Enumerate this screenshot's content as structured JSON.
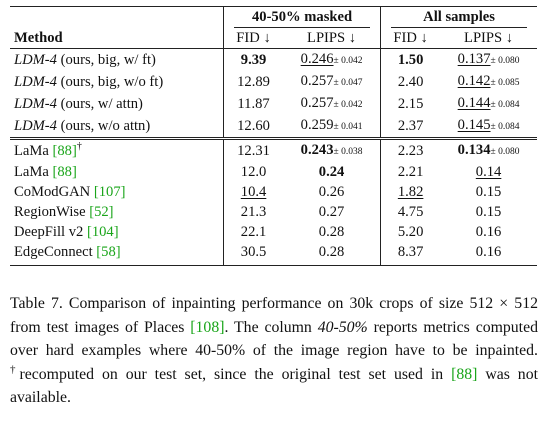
{
  "table": {
    "group_headers": [
      "40-50% masked",
      "All samples"
    ],
    "column_headers": [
      "Method",
      "FID ↓",
      "LPIPS ↓",
      "FID ↓",
      "LPIPS ↓"
    ],
    "ldm_rows": [
      {
        "name": "LDM-4",
        "desc": " (ours, big, w/ ft)",
        "fid1": "9.39",
        "lp1": "0.246",
        "lp1_std": "± 0.042",
        "fid2": "1.50",
        "lp2": "0.137",
        "lp2_std": "± 0.080"
      },
      {
        "name": "LDM-4",
        "desc": " (ours, big, w/o ft)",
        "fid1": "12.89",
        "lp1": "0.257",
        "lp1_std": "± 0.047",
        "fid2": "2.40",
        "lp2": "0.142",
        "lp2_std": "± 0.085"
      },
      {
        "name": "LDM-4",
        "desc": " (ours, w/ attn)",
        "fid1": "11.87",
        "lp1": "0.257",
        "lp1_std": "± 0.042",
        "fid2": "2.15",
        "lp2": "0.144",
        "lp2_std": "± 0.084"
      },
      {
        "name": "LDM-4",
        "desc": " (ours, w/o attn)",
        "fid1": "12.60",
        "lp1": "0.259",
        "lp1_std": "± 0.041",
        "fid2": "2.37",
        "lp2": "0.145",
        "lp2_std": "± 0.084"
      }
    ],
    "baseline_rows": [
      {
        "name": "LaMa ",
        "ref": "[88]",
        "dagger": "†",
        "fid1": "12.31",
        "lp1": "0.243",
        "lp1_std": "± 0.038",
        "fid2": "2.23",
        "lp2": "0.134",
        "lp2_std": "± 0.080"
      },
      {
        "name": "LaMa ",
        "ref": "[88]",
        "dagger": "",
        "fid1": "12.0",
        "lp1": "0.24",
        "lp1_std": "",
        "fid2": "2.21",
        "lp2": "0.14",
        "lp2_std": ""
      },
      {
        "name": "CoModGAN ",
        "ref": "[107]",
        "dagger": "",
        "fid1": "10.4",
        "lp1": "0.26",
        "lp1_std": "",
        "fid2": "1.82",
        "lp2": "0.15",
        "lp2_std": ""
      },
      {
        "name": "RegionWise ",
        "ref": "[52]",
        "dagger": "",
        "fid1": "21.3",
        "lp1": "0.27",
        "lp1_std": "",
        "fid2": "4.75",
        "lp2": "0.15",
        "lp2_std": ""
      },
      {
        "name": "DeepFill v2 ",
        "ref": "[104]",
        "dagger": "",
        "fid1": "22.1",
        "lp1": "0.28",
        "lp1_std": "",
        "fid2": "5.20",
        "lp2": "0.16",
        "lp2_std": ""
      },
      {
        "name": "EdgeConnect ",
        "ref": "[58]",
        "dagger": "",
        "fid1": "30.5",
        "lp1": "0.28",
        "lp1_std": "",
        "fid2": "8.37",
        "lp2": "0.16",
        "lp2_std": ""
      }
    ]
  },
  "caption": {
    "p1": "Table 7.  Comparison of inpainting performance on 30k crops of size 512 × 512 from test images of Places ",
    "ref1": "[108]",
    "p2": ". The column ",
    "italic": "40-50%",
    "p3": " reports metrics computed over hard examples where 40-50% of the image region have to be inpainted. ",
    "dagger": "†",
    "p4": "recomputed on our test set, since the original test set used in ",
    "ref2": "[88]",
    "p5": " was not available."
  },
  "colors": {
    "text": "#111111",
    "reference_link": "#1aa51a",
    "background": "#ffffff"
  }
}
